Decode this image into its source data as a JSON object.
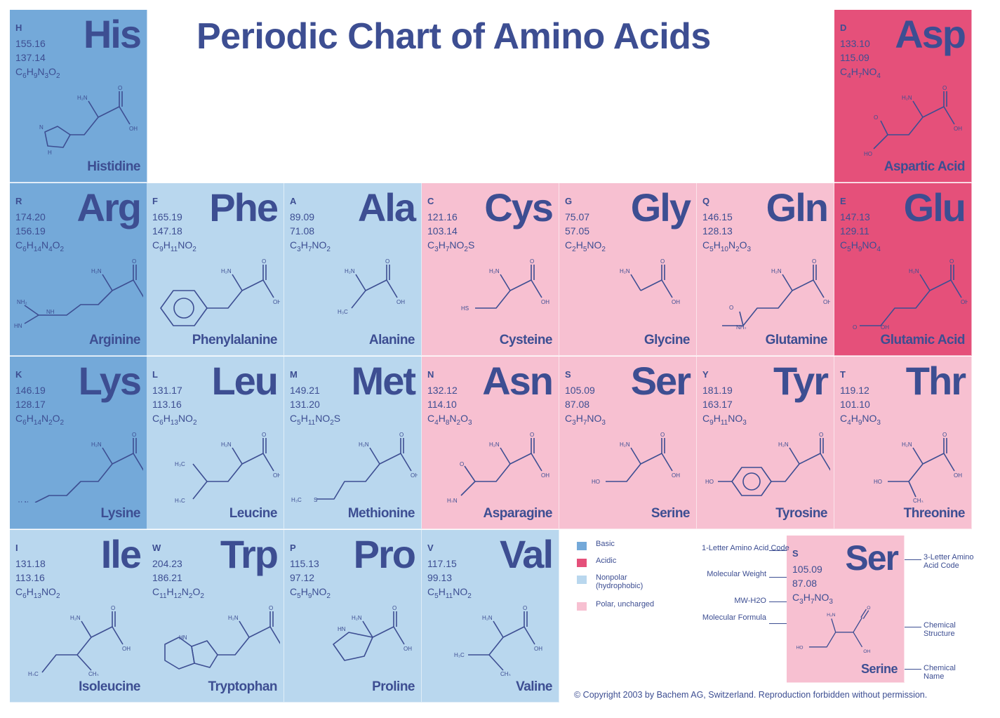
{
  "title": "Periodic Chart of Amino Acids",
  "categories": {
    "basic": {
      "label": "Basic",
      "color": "#74a9d9"
    },
    "acidic": {
      "label": "Acidic",
      "color": "#e5507a"
    },
    "nonpolar": {
      "label": "Nonpolar (hydrophobic)",
      "color": "#b9d7ee"
    },
    "polar": {
      "label": "Polar, uncharged",
      "color": "#f7c0d1"
    }
  },
  "amino_acids": [
    {
      "letter": "H",
      "abbr": "His",
      "mw": "155.16",
      "mw_h2o": "137.14",
      "formula": "C6H9N3O2",
      "name": "Histidine",
      "category": "basic",
      "structure": "histidine"
    },
    {
      "letter": "D",
      "abbr": "Asp",
      "mw": "133.10",
      "mw_h2o": "115.09",
      "formula": "C4H7NO4",
      "name": "Aspartic Acid",
      "category": "acidic",
      "structure": "aspartic"
    },
    {
      "letter": "R",
      "abbr": "Arg",
      "mw": "174.20",
      "mw_h2o": "156.19",
      "formula": "C6H14N4O2",
      "name": "Arginine",
      "category": "basic",
      "structure": "arginine"
    },
    {
      "letter": "F",
      "abbr": "Phe",
      "mw": "165.19",
      "mw_h2o": "147.18",
      "formula": "C9H11NO2",
      "name": "Phenylalanine",
      "category": "nonpolar",
      "structure": "phenylalanine"
    },
    {
      "letter": "A",
      "abbr": "Ala",
      "mw": "89.09",
      "mw_h2o": "71.08",
      "formula": "C3H7NO2",
      "name": "Alanine",
      "category": "nonpolar",
      "structure": "alanine"
    },
    {
      "letter": "C",
      "abbr": "Cys",
      "mw": "121.16",
      "mw_h2o": "103.14",
      "formula": "C3H7NO2S",
      "name": "Cysteine",
      "category": "polar",
      "structure": "cysteine"
    },
    {
      "letter": "G",
      "abbr": "Gly",
      "mw": "75.07",
      "mw_h2o": "57.05",
      "formula": "C2H5NO2",
      "name": "Glycine",
      "category": "polar",
      "structure": "glycine"
    },
    {
      "letter": "Q",
      "abbr": "Gln",
      "mw": "146.15",
      "mw_h2o": "128.13",
      "formula": "C5H10N2O3",
      "name": "Glutamine",
      "category": "polar",
      "structure": "glutamine"
    },
    {
      "letter": "E",
      "abbr": "Glu",
      "mw": "147.13",
      "mw_h2o": "129.11",
      "formula": "C5H9NO4",
      "name": "Glutamic Acid",
      "category": "acidic",
      "structure": "glutamic"
    },
    {
      "letter": "K",
      "abbr": "Lys",
      "mw": "146.19",
      "mw_h2o": "128.17",
      "formula": "C6H14N2O2",
      "name": "Lysine",
      "category": "basic",
      "structure": "lysine"
    },
    {
      "letter": "L",
      "abbr": "Leu",
      "mw": "131.17",
      "mw_h2o": "113.16",
      "formula": "C6H13NO2",
      "name": "Leucine",
      "category": "nonpolar",
      "structure": "leucine"
    },
    {
      "letter": "M",
      "abbr": "Met",
      "mw": "149.21",
      "mw_h2o": "131.20",
      "formula": "C5H11NO2S",
      "name": "Methionine",
      "category": "nonpolar",
      "structure": "methionine"
    },
    {
      "letter": "N",
      "abbr": "Asn",
      "mw": "132.12",
      "mw_h2o": "114.10",
      "formula": "C4H8N2O3",
      "name": "Asparagine",
      "category": "polar",
      "structure": "asparagine"
    },
    {
      "letter": "S",
      "abbr": "Ser",
      "mw": "105.09",
      "mw_h2o": "87.08",
      "formula": "C3H7NO3",
      "name": "Serine",
      "category": "polar",
      "structure": "serine"
    },
    {
      "letter": "Y",
      "abbr": "Tyr",
      "mw": "181.19",
      "mw_h2o": "163.17",
      "formula": "C9H11NO3",
      "name": "Tyrosine",
      "category": "polar",
      "structure": "tyrosine"
    },
    {
      "letter": "T",
      "abbr": "Thr",
      "mw": "119.12",
      "mw_h2o": "101.10",
      "formula": "C4H9NO3",
      "name": "Threonine",
      "category": "polar",
      "structure": "threonine"
    },
    {
      "letter": "I",
      "abbr": "Ile",
      "mw": "131.18",
      "mw_h2o": "113.16",
      "formula": "C6H13NO2",
      "name": "Isoleucine",
      "category": "nonpolar",
      "structure": "isoleucine"
    },
    {
      "letter": "W",
      "abbr": "Trp",
      "mw": "204.23",
      "mw_h2o": "186.21",
      "formula": "C11H12N2O2",
      "name": "Tryptophan",
      "category": "nonpolar",
      "structure": "tryptophan"
    },
    {
      "letter": "P",
      "abbr": "Pro",
      "mw": "115.13",
      "mw_h2o": "97.12",
      "formula": "C5H9NO2",
      "name": "Proline",
      "category": "nonpolar",
      "structure": "proline"
    },
    {
      "letter": "V",
      "abbr": "Val",
      "mw": "117.15",
      "mw_h2o": "99.13",
      "formula": "C5H11NO2",
      "name": "Valine",
      "category": "nonpolar",
      "structure": "valine"
    }
  ],
  "key": {
    "letter": "S",
    "abbr": "Ser",
    "mw": "105.09",
    "mw_h2o": "87.08",
    "formula": "C3H7NO3",
    "name": "Serine",
    "category": "polar",
    "callouts": {
      "one_letter": "1-Letter Amino Acid Code",
      "molecular_weight": "Molecular Weight",
      "mw_h2o": "MW-H2O",
      "molecular_formula": "Molecular Formula",
      "three_letter": "3-Letter Amino Acid Code",
      "chemical_structure": "Chemical Structure",
      "chemical_name": "Chemical Name"
    }
  },
  "copyright": "© Copyright 2003 by Bachem AG, Switzerland. Reproduction forbidden without permission."
}
